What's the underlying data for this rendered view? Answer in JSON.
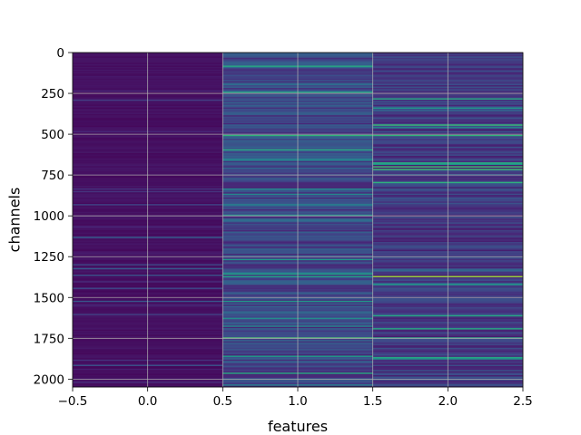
{
  "chart_data": {
    "type": "heatmap",
    "colormap": "viridis",
    "xlabel": "features",
    "ylabel": "channels",
    "xlim": [
      -0.5,
      2.5
    ],
    "ylim": [
      2048,
      0
    ],
    "y_inverted": true,
    "grid": true,
    "columns": [
      0,
      1,
      2
    ],
    "rows": 2048,
    "x_ticks": [
      -0.5,
      0.0,
      0.5,
      1.0,
      1.5,
      2.0,
      2.5
    ],
    "x_tick_labels": [
      "−0.5",
      "0.0",
      "0.5",
      "1.0",
      "1.5",
      "2.0",
      "2.5"
    ],
    "y_ticks": [
      0,
      250,
      500,
      750,
      1000,
      1250,
      1500,
      1750,
      2000
    ],
    "y_tick_labels": [
      "0",
      "250",
      "500",
      "750",
      "1000",
      "1250",
      "1500",
      "1750",
      "2000"
    ],
    "column_value_profile": [
      {
        "column": 0,
        "typical": 0.05,
        "max": 0.35
      },
      {
        "column": 1,
        "typical": 0.25,
        "max": 0.7
      },
      {
        "column": 2,
        "typical": 0.2,
        "max": 0.85
      }
    ],
    "bright_rows": [
      {
        "column": 1,
        "channel": 85,
        "value": 0.6
      },
      {
        "column": 1,
        "channel": 505,
        "value": 0.65
      },
      {
        "column": 1,
        "channel": 1750,
        "value": 0.7
      },
      {
        "column": 1,
        "channel": 1960,
        "value": 0.6
      },
      {
        "column": 2,
        "channel": 280,
        "value": 0.6
      },
      {
        "column": 2,
        "channel": 505,
        "value": 0.65
      },
      {
        "column": 2,
        "channel": 1370,
        "value": 0.85
      },
      {
        "column": 2,
        "channel": 1690,
        "value": 0.6
      },
      {
        "column": 2,
        "channel": 1750,
        "value": 0.6
      }
    ]
  }
}
